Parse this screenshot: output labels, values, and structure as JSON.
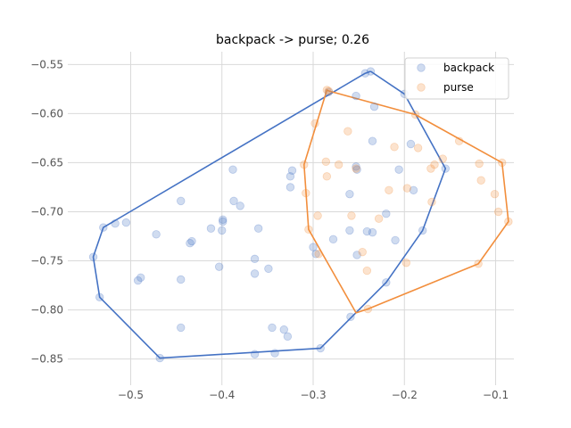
{
  "chart_data": {
    "type": "scatter",
    "title": "backpack -> purse; 0.26",
    "xlabel": "",
    "ylabel": "",
    "xlim": [
      -0.565,
      -0.08
    ],
    "ylim": [
      -0.873,
      -0.537
    ],
    "xticks": [
      -0.5,
      -0.4,
      -0.3,
      -0.2,
      -0.1
    ],
    "xtick_labels": [
      "−0.5",
      "−0.4",
      "−0.3",
      "−0.2",
      "−0.1"
    ],
    "yticks": [
      -0.55,
      -0.6,
      -0.65,
      -0.7,
      -0.75,
      -0.8,
      -0.85
    ],
    "ytick_labels": [
      "−0.55",
      "−0.60",
      "−0.65",
      "−0.70",
      "−0.75",
      "−0.80",
      "−0.85"
    ],
    "grid": true,
    "legend_position": "top-right",
    "series": [
      {
        "name": "backpack",
        "color": "#4472c4",
        "points": [
          [
            -0.237,
            -0.557
          ],
          [
            -0.243,
            -0.559
          ],
          [
            -0.2,
            -0.58
          ],
          [
            -0.283,
            -0.578
          ],
          [
            -0.253,
            -0.582
          ],
          [
            -0.233,
            -0.593
          ],
          [
            -0.193,
            -0.631
          ],
          [
            -0.235,
            -0.628
          ],
          [
            -0.155,
            -0.656
          ],
          [
            -0.388,
            -0.657
          ],
          [
            -0.323,
            -0.658
          ],
          [
            -0.325,
            -0.664
          ],
          [
            -0.253,
            -0.654
          ],
          [
            -0.252,
            -0.657
          ],
          [
            -0.206,
            -0.657
          ],
          [
            -0.325,
            -0.675
          ],
          [
            -0.19,
            -0.678
          ],
          [
            -0.26,
            -0.682
          ],
          [
            -0.445,
            -0.689
          ],
          [
            -0.387,
            -0.689
          ],
          [
            -0.38,
            -0.694
          ],
          [
            -0.22,
            -0.702
          ],
          [
            -0.399,
            -0.708
          ],
          [
            -0.399,
            -0.71
          ],
          [
            -0.505,
            -0.711
          ],
          [
            -0.517,
            -0.712
          ],
          [
            -0.412,
            -0.717
          ],
          [
            -0.36,
            -0.717
          ],
          [
            -0.53,
            -0.716
          ],
          [
            -0.4,
            -0.719
          ],
          [
            -0.18,
            -0.719
          ],
          [
            -0.26,
            -0.719
          ],
          [
            -0.241,
            -0.72
          ],
          [
            -0.235,
            -0.721
          ],
          [
            -0.472,
            -0.723
          ],
          [
            -0.278,
            -0.728
          ],
          [
            -0.21,
            -0.729
          ],
          [
            -0.433,
            -0.73
          ],
          [
            -0.435,
            -0.732
          ],
          [
            -0.3,
            -0.736
          ],
          [
            -0.297,
            -0.743
          ],
          [
            -0.252,
            -0.744
          ],
          [
            -0.541,
            -0.746
          ],
          [
            -0.364,
            -0.748
          ],
          [
            -0.403,
            -0.756
          ],
          [
            -0.349,
            -0.758
          ],
          [
            -0.364,
            -0.763
          ],
          [
            -0.489,
            -0.767
          ],
          [
            -0.445,
            -0.769
          ],
          [
            -0.492,
            -0.77
          ],
          [
            -0.22,
            -0.772
          ],
          [
            -0.534,
            -0.787
          ],
          [
            -0.259,
            -0.807
          ],
          [
            -0.445,
            -0.818
          ],
          [
            -0.345,
            -0.818
          ],
          [
            -0.332,
            -0.82
          ],
          [
            -0.328,
            -0.827
          ],
          [
            -0.292,
            -0.839
          ],
          [
            -0.342,
            -0.844
          ],
          [
            -0.364,
            -0.845
          ],
          [
            -0.468,
            -0.849
          ]
        ],
        "hull": [
          [
            -0.237,
            -0.557
          ],
          [
            -0.2,
            -0.58
          ],
          [
            -0.155,
            -0.656
          ],
          [
            -0.18,
            -0.719
          ],
          [
            -0.22,
            -0.772
          ],
          [
            -0.292,
            -0.839
          ],
          [
            -0.468,
            -0.849
          ],
          [
            -0.534,
            -0.787
          ],
          [
            -0.541,
            -0.746
          ],
          [
            -0.53,
            -0.716
          ],
          [
            -0.243,
            -0.559
          ],
          [
            -0.237,
            -0.557
          ]
        ]
      },
      {
        "name": "purse",
        "color": "#f28e3c",
        "points": [
          [
            -0.285,
            -0.576
          ],
          [
            -0.283,
            -0.577
          ],
          [
            -0.188,
            -0.601
          ],
          [
            -0.298,
            -0.61
          ],
          [
            -0.262,
            -0.618
          ],
          [
            -0.14,
            -0.628
          ],
          [
            -0.211,
            -0.634
          ],
          [
            -0.185,
            -0.635
          ],
          [
            -0.158,
            -0.646
          ],
          [
            -0.167,
            -0.652
          ],
          [
            -0.171,
            -0.656
          ],
          [
            -0.118,
            -0.651
          ],
          [
            -0.093,
            -0.65
          ],
          [
            -0.286,
            -0.649
          ],
          [
            -0.272,
            -0.652
          ],
          [
            -0.253,
            -0.656
          ],
          [
            -0.31,
            -0.652
          ],
          [
            -0.285,
            -0.664
          ],
          [
            -0.116,
            -0.668
          ],
          [
            -0.197,
            -0.676
          ],
          [
            -0.217,
            -0.678
          ],
          [
            -0.308,
            -0.681
          ],
          [
            -0.101,
            -0.682
          ],
          [
            -0.17,
            -0.69
          ],
          [
            -0.097,
            -0.7
          ],
          [
            -0.086,
            -0.71
          ],
          [
            -0.295,
            -0.704
          ],
          [
            -0.258,
            -0.704
          ],
          [
            -0.228,
            -0.707
          ],
          [
            -0.305,
            -0.718
          ],
          [
            -0.246,
            -0.741
          ],
          [
            -0.294,
            -0.743
          ],
          [
            -0.198,
            -0.752
          ],
          [
            -0.119,
            -0.753
          ],
          [
            -0.241,
            -0.76
          ],
          [
            -0.24,
            -0.799
          ]
        ],
        "hull": [
          [
            -0.283,
            -0.577
          ],
          [
            -0.188,
            -0.601
          ],
          [
            -0.093,
            -0.65
          ],
          [
            -0.086,
            -0.71
          ],
          [
            -0.119,
            -0.753
          ],
          [
            -0.24,
            -0.799
          ],
          [
            -0.253,
            -0.803
          ],
          [
            -0.305,
            -0.718
          ],
          [
            -0.31,
            -0.652
          ],
          [
            -0.285,
            -0.576
          ],
          [
            -0.283,
            -0.577
          ]
        ]
      }
    ]
  }
}
